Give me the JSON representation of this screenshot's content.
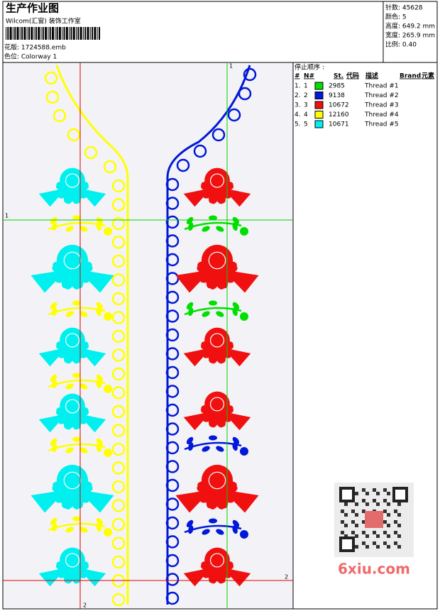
{
  "header": {
    "title": "生产作业图",
    "studio": "Wilcom(汇窗) 装饰工作室",
    "design_file": "花版: 1724588.emb",
    "colorway": "色位: Colorway 1"
  },
  "stats": [
    "针数: 45628",
    "颜色: 5",
    "高度: 649.2 mm",
    "宽度: 265.9 mm",
    "比例: 0.40"
  ],
  "stop_sequence": {
    "title": "停止顺序 :",
    "columns": [
      "#",
      "N#",
      "St.",
      "代码",
      "描述",
      "Brand",
      "元素"
    ],
    "rows": [
      {
        "order": "1.",
        "needle": "1",
        "color": "#00e000",
        "code": "2985",
        "description": "Thread #1"
      },
      {
        "order": "2.",
        "needle": "2",
        "color": "#0018d8",
        "code": "9138",
        "description": "Thread #2"
      },
      {
        "order": "3.",
        "needle": "3",
        "color": "#f01010",
        "code": "10672",
        "description": "Thread #3"
      },
      {
        "order": "4.",
        "needle": "4",
        "color": "#ffff00",
        "code": "12160",
        "description": "Thread #4"
      },
      {
        "order": "5.",
        "needle": "5",
        "color": "#00f0f0",
        "code": "10671",
        "description": "Thread #5"
      }
    ]
  },
  "guides": {
    "v1": "1",
    "h1": "1",
    "v2": "2",
    "h2": "2"
  },
  "watermark": "6xiu.com"
}
